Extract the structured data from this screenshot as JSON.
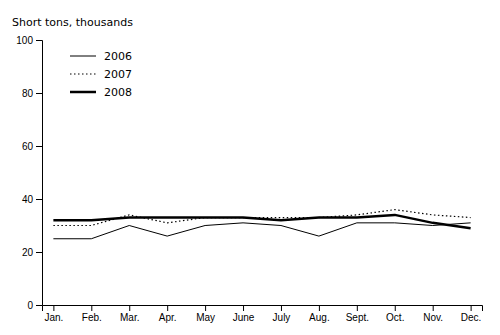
{
  "chart_data": {
    "type": "line",
    "ylabel": "Short tons, thousands",
    "categories": [
      "Jan.",
      "Feb.",
      "Mar.",
      "Apr.",
      "May",
      "June",
      "July",
      "Aug.",
      "Sept.",
      "Oct.",
      "Nov.",
      "Dec."
    ],
    "series": [
      {
        "name": "2006",
        "color": "#000000",
        "line_style": "solid",
        "values": [
          25,
          25,
          30,
          26,
          30,
          31,
          30,
          26,
          31,
          31,
          30,
          31
        ]
      },
      {
        "name": "2007",
        "color": "#000000",
        "line_style": "dotted",
        "values": [
          30,
          30,
          34,
          31,
          33,
          33,
          33,
          33,
          34,
          36,
          34,
          33
        ]
      },
      {
        "name": "2008",
        "color": "#000000",
        "line_style": "solid",
        "values": [
          32,
          32,
          33,
          33,
          33,
          33,
          32,
          33,
          33,
          34,
          31,
          29
        ]
      }
    ],
    "ylim": [
      0,
      100
    ],
    "yticks": [
      0,
      20,
      40,
      60,
      80,
      100
    ],
    "grid": false,
    "legend": "upper left"
  }
}
